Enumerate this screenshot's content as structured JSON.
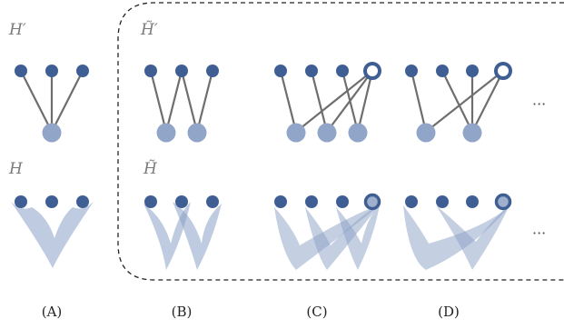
{
  "labels": {
    "h_prime": "H′",
    "h": "H",
    "h_tilde_prime": "H̃′",
    "h_tilde": "H̃"
  },
  "captions": [
    "(A)",
    "(B)",
    "(C)",
    "(D)"
  ],
  "ellipsis": "···",
  "colors": {
    "node_dark": "#3f5f94",
    "node_light": "#91a5c9",
    "edge": "#6e6e6e",
    "hyperedge_fill": "#8aa0c6",
    "dashed_border": "#222222",
    "label_text": "#7a7a7a"
  }
}
